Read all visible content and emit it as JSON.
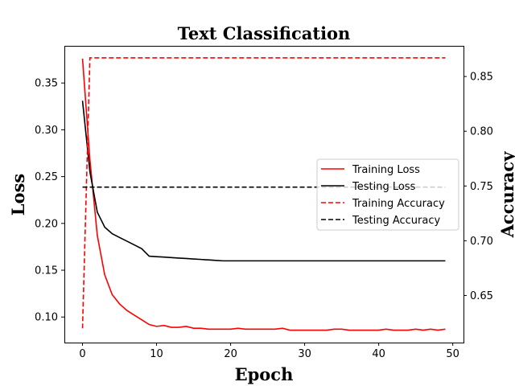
{
  "chart_data": {
    "type": "line",
    "title": "Text Classification",
    "xlabel": "Epoch",
    "ylabel_left": "Loss",
    "ylabel_right": "Accuracy",
    "xlim": [
      -2.45,
      51.45
    ],
    "ylim_left": [
      0.0727,
      0.3897
    ],
    "ylim_right": [
      0.607,
      0.878
    ],
    "xticks": [
      0,
      10,
      20,
      30,
      40,
      50
    ],
    "yticks_left": [
      0.1,
      0.15,
      0.2,
      0.25,
      0.3,
      0.35
    ],
    "yticks_right": [
      0.65,
      0.7,
      0.75,
      0.8,
      0.85
    ],
    "grid": false,
    "legend_position": "center-right",
    "x": [
      0,
      1,
      2,
      3,
      4,
      5,
      6,
      7,
      8,
      9,
      10,
      11,
      12,
      13,
      14,
      15,
      16,
      17,
      18,
      19,
      20,
      21,
      22,
      23,
      24,
      25,
      26,
      27,
      28,
      29,
      30,
      31,
      32,
      33,
      34,
      35,
      36,
      37,
      38,
      39,
      40,
      41,
      42,
      43,
      44,
      45,
      46,
      47,
      48,
      49
    ],
    "series": [
      {
        "name": "Training Loss",
        "axis": "left",
        "color": "#ff0000",
        "dash": "solid",
        "values": [
          0.376,
          0.268,
          0.187,
          0.145,
          0.124,
          0.114,
          0.107,
          0.102,
          0.097,
          0.092,
          0.09,
          0.091,
          0.089,
          0.089,
          0.09,
          0.088,
          0.088,
          0.087,
          0.087,
          0.087,
          0.087,
          0.088,
          0.087,
          0.087,
          0.087,
          0.087,
          0.087,
          0.088,
          0.086,
          0.086,
          0.086,
          0.086,
          0.086,
          0.086,
          0.087,
          0.087,
          0.086,
          0.086,
          0.086,
          0.086,
          0.086,
          0.087,
          0.086,
          0.086,
          0.086,
          0.087,
          0.086,
          0.087,
          0.086,
          0.087
        ]
      },
      {
        "name": "Testing Loss",
        "axis": "left",
        "color": "#000000",
        "dash": "solid",
        "values": [
          0.331,
          0.255,
          0.212,
          0.196,
          0.189,
          0.185,
          0.181,
          0.177,
          0.173,
          0.165,
          0.1645,
          0.164,
          0.1635,
          0.163,
          0.1625,
          0.162,
          0.1615,
          0.161,
          0.1605,
          0.16,
          0.16,
          0.16,
          0.16,
          0.16,
          0.16,
          0.16,
          0.16,
          0.16,
          0.16,
          0.16,
          0.16,
          0.16,
          0.16,
          0.16,
          0.16,
          0.16,
          0.16,
          0.16,
          0.16,
          0.16,
          0.16,
          0.16,
          0.16,
          0.16,
          0.16,
          0.16,
          0.16,
          0.16,
          0.16,
          0.16
        ]
      },
      {
        "name": "Training Accuracy",
        "axis": "right",
        "color": "#ff0000",
        "dash": "dashed",
        "values": [
          0.62,
          0.867,
          0.867,
          0.867,
          0.867,
          0.867,
          0.867,
          0.867,
          0.867,
          0.867,
          0.867,
          0.867,
          0.867,
          0.867,
          0.867,
          0.867,
          0.867,
          0.867,
          0.867,
          0.867,
          0.867,
          0.867,
          0.867,
          0.867,
          0.867,
          0.867,
          0.867,
          0.867,
          0.867,
          0.867,
          0.867,
          0.867,
          0.867,
          0.867,
          0.867,
          0.867,
          0.867,
          0.867,
          0.867,
          0.867,
          0.867,
          0.867,
          0.867,
          0.867,
          0.867,
          0.867,
          0.867,
          0.867,
          0.867,
          0.867
        ]
      },
      {
        "name": "Testing Accuracy",
        "axis": "right",
        "color": "#000000",
        "dash": "dashed",
        "values": [
          0.749,
          0.749,
          0.749,
          0.749,
          0.749,
          0.749,
          0.749,
          0.749,
          0.749,
          0.749,
          0.749,
          0.749,
          0.749,
          0.749,
          0.749,
          0.749,
          0.749,
          0.749,
          0.749,
          0.749,
          0.749,
          0.749,
          0.749,
          0.749,
          0.749,
          0.749,
          0.749,
          0.749,
          0.749,
          0.749,
          0.749,
          0.749,
          0.749,
          0.749,
          0.749,
          0.749,
          0.749,
          0.749,
          0.749,
          0.749,
          0.749,
          0.749,
          0.749,
          0.749,
          0.749,
          0.749,
          0.749,
          0.749,
          0.749,
          0.749
        ]
      }
    ]
  }
}
